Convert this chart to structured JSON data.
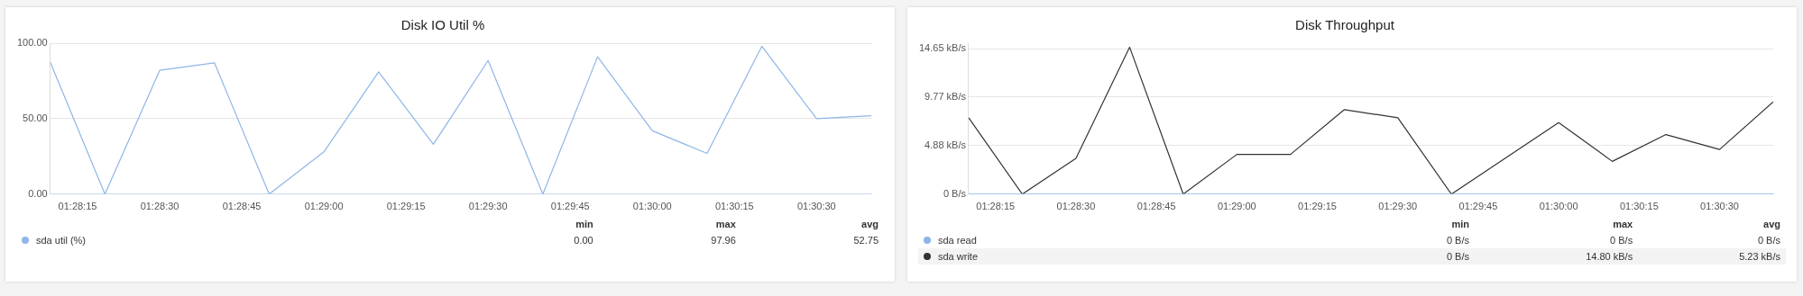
{
  "chart_data": [
    {
      "type": "line",
      "title": "Disk IO Util %",
      "x": [
        1.469444,
        1.472222,
        1.475,
        1.477778,
        1.480556,
        1.483333,
        1.486111,
        1.488889,
        1.491667,
        1.494444,
        1.497222,
        1.5,
        1.502778,
        1.505556,
        1.508333,
        1.511111
      ],
      "series": [
        {
          "name": "sda util (%)",
          "color": "#8fb6e6",
          "values": [
            87.5,
            0,
            82,
            87,
            0,
            28,
            81,
            33,
            88.5,
            0,
            91,
            42,
            27,
            97.96,
            50,
            52
          ]
        }
      ],
      "xlim": [
        1.469444,
        1.511111
      ],
      "xticks": [
        {
          "value": 1.470833,
          "label": "01:28:15"
        },
        {
          "value": 1.475,
          "label": "01:28:30"
        },
        {
          "value": 1.479167,
          "label": "01:28:45"
        },
        {
          "value": 1.483333,
          "label": "01:29:00"
        },
        {
          "value": 1.4875,
          "label": "01:29:15"
        },
        {
          "value": 1.491667,
          "label": "01:29:30"
        },
        {
          "value": 1.495833,
          "label": "01:29:45"
        },
        {
          "value": 1.5,
          "label": "01:30:00"
        },
        {
          "value": 1.504167,
          "label": "01:30:15"
        },
        {
          "value": 1.508333,
          "label": "01:30:30"
        }
      ],
      "ylim": [
        0,
        100
      ],
      "yticks": [
        {
          "value": 0,
          "label": "0.00"
        },
        {
          "value": 50,
          "label": "50.00"
        },
        {
          "value": 100,
          "label": "100.00"
        }
      ],
      "grid": "y",
      "legend": "bottom",
      "marker": "none",
      "annotations": [
        "min",
        "max",
        "avg",
        "0.00",
        "97.96",
        "52.75"
      ]
    },
    {
      "type": "line",
      "title": "Disk Throughput",
      "x": [
        1.469444,
        1.472222,
        1.475,
        1.477778,
        1.480556,
        1.483333,
        1.486111,
        1.488889,
        1.491667,
        1.494444,
        1.497222,
        1.5,
        1.502778,
        1.505556,
        1.508333,
        1.511111
      ],
      "series": [
        {
          "name": "sda read",
          "color": "#8ab4e6",
          "values": [
            0,
            0,
            0,
            0,
            0,
            0,
            0,
            0,
            0,
            0,
            0,
            0,
            0,
            0,
            0,
            0
          ]
        },
        {
          "name": "sda write",
          "color": "#333333",
          "values": [
            7.7,
            0,
            3.6,
            14.8,
            0,
            4.0,
            4.0,
            8.5,
            7.7,
            0,
            3.6,
            7.2,
            3.3,
            6.0,
            4.5,
            9.3
          ]
        }
      ],
      "xlim": [
        1.469444,
        1.511111
      ],
      "xticks": [
        {
          "value": 1.470833,
          "label": "01:28:15"
        },
        {
          "value": 1.475,
          "label": "01:28:30"
        },
        {
          "value": 1.479167,
          "label": "01:28:45"
        },
        {
          "value": 1.483333,
          "label": "01:29:00"
        },
        {
          "value": 1.4875,
          "label": "01:29:15"
        },
        {
          "value": 1.491667,
          "label": "01:29:30"
        },
        {
          "value": 1.495833,
          "label": "01:29:45"
        },
        {
          "value": 1.5,
          "label": "01:30:00"
        },
        {
          "value": 1.504167,
          "label": "01:30:15"
        },
        {
          "value": 1.508333,
          "label": "01:30:30"
        }
      ],
      "ylim": [
        0,
        15.2
      ],
      "yticks": [
        {
          "value": 0,
          "label": "0 B/s"
        },
        {
          "value": 4.88,
          "label": "4.88 kB/s"
        },
        {
          "value": 9.77,
          "label": "9.77 kB/s"
        },
        {
          "value": 14.65,
          "label": "14.65 kB/s"
        }
      ],
      "grid": "y",
      "legend": "bottom",
      "marker": "none",
      "annotations": [
        "min",
        "max",
        "avg",
        "0 B/s",
        "0 B/s",
        "0 B/s",
        "0 B/s",
        "14.80 kB/s",
        "5.23 kB/s"
      ]
    }
  ]
}
